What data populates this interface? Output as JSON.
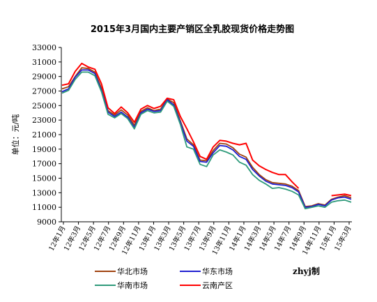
{
  "chart_data": {
    "type": "line",
    "title": "2015年3月国内主要产销区全乳胶现货价格走势图",
    "ylabel": "单位：元/吨",
    "xlabel": "",
    "ylim": [
      9000,
      33000
    ],
    "y_ticks": [
      "33000",
      "31000",
      "29000",
      "27000",
      "25000",
      "23000",
      "21000",
      "19000",
      "17000",
      "15000",
      "13000",
      "11000",
      "9000"
    ],
    "x_ticks": [
      "12年1月",
      "12年3月",
      "12年5月",
      "12年7月",
      "12年9月",
      "12年11月",
      "13年1月",
      "13年3月",
      "13年5月",
      "13年7月",
      "13年9月",
      "13年11月",
      "14年1月",
      "14年3月",
      "14年5月",
      "14年7月",
      "14年9月",
      "14年11月",
      "15年1月",
      "15年3月"
    ],
    "grid": false,
    "legend_position": "bottom",
    "credit": "zhyj制",
    "series": [
      {
        "name": "华北市场",
        "color": "#a0430e",
        "values": [
          27300,
          27600,
          29000,
          30200,
          30100,
          29600,
          27400,
          24300,
          23700,
          24400,
          23700,
          22300,
          24200,
          24700,
          24300,
          24500,
          25900,
          25400,
          22900,
          20400,
          19600,
          17500,
          17400,
          18800,
          19800,
          19700,
          19200,
          18300,
          17900,
          16500,
          15500,
          14800,
          14400,
          14300,
          14200,
          13900,
          13300,
          11100,
          11200,
          11500,
          11300,
          12100,
          12400,
          12600,
          12300
        ]
      },
      {
        "name": "华东市场",
        "color": "#1f1fd0",
        "values": [
          26900,
          27300,
          28900,
          29900,
          29900,
          29400,
          27100,
          24100,
          23500,
          24100,
          23400,
          22000,
          24000,
          24500,
          24200,
          24300,
          25800,
          25100,
          22700,
          20100,
          19400,
          17300,
          17200,
          18500,
          19500,
          19400,
          18900,
          18000,
          17600,
          16200,
          15300,
          14600,
          14200,
          14100,
          14000,
          13700,
          13100,
          11000,
          11100,
          11400,
          11200,
          12000,
          12300,
          12400,
          12100
        ]
      },
      {
        "name": "华南市场",
        "color": "#2e9a7a",
        "values": [
          26700,
          27100,
          28600,
          29600,
          29600,
          29100,
          26900,
          23800,
          23300,
          23900,
          23200,
          21800,
          23800,
          24300,
          24000,
          24100,
          25600,
          24900,
          22400,
          19300,
          19000,
          16900,
          16600,
          18200,
          18900,
          18600,
          18200,
          17200,
          16800,
          15500,
          14700,
          14200,
          13600,
          13700,
          13500,
          13200,
          12700,
          10800,
          11000,
          11200,
          11000,
          11700,
          11900,
          12000,
          11700
        ]
      },
      {
        "name": "云南产区",
        "color": "#ff0000",
        "values": [
          27800,
          28000,
          29700,
          30800,
          30300,
          30000,
          28000,
          24700,
          23900,
          24800,
          24000,
          22700,
          24500,
          25000,
          24600,
          24900,
          26000,
          25800,
          23500,
          21800,
          20000,
          18000,
          17600,
          19300,
          20200,
          20100,
          19800,
          19600,
          19800,
          17500,
          16700,
          16200,
          15800,
          15500,
          15500,
          14500,
          13600,
          null,
          null,
          null,
          null,
          12600,
          12700,
          12800,
          12600
        ]
      }
    ]
  }
}
